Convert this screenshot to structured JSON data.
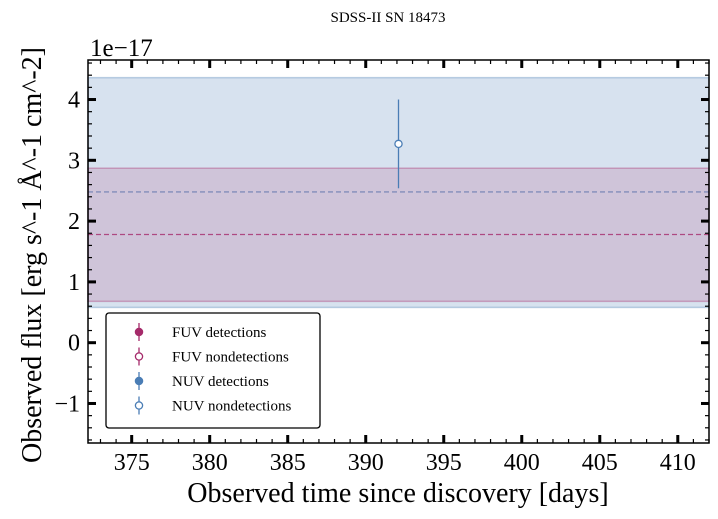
{
  "chart_data": {
    "type": "scatter",
    "title": "SDSS-II SN 18473",
    "xlabel": "Observed time since discovery [days]",
    "ylabel": "Observed flux [erg s^-1 Å^-1 cm^-2]",
    "y_offset_label": "1e−17",
    "xlim": [
      372.2,
      412.0
    ],
    "ylim": [
      -1.65,
      4.65
    ],
    "xticks": [
      375,
      380,
      385,
      390,
      395,
      400,
      405,
      410
    ],
    "yticks": [
      -1,
      0,
      1,
      2,
      3,
      4
    ],
    "ytick_labels": [
      "−1",
      "0",
      "1",
      "2",
      "3",
      "4"
    ],
    "bands": [
      {
        "name": "NUV",
        "color": "#4a7db5",
        "fill_opacity": 0.22,
        "mean": 2.48,
        "low": 0.58,
        "high": 4.36
      },
      {
        "name": "FUV",
        "color": "#a52a6a",
        "fill_opacity": 0.16,
        "mean": 1.78,
        "low": 0.68,
        "high": 2.87
      }
    ],
    "points": [
      {
        "series": "NUV nondetections",
        "x": 392.1,
        "y": 3.27,
        "yerr_low": 0.73,
        "yerr_high": 0.73,
        "color": "#4a7db5",
        "filled": false
      }
    ],
    "legend": {
      "position": "lower-left",
      "entries": [
        {
          "label": "FUV detections",
          "color": "#a52a6a",
          "filled": true
        },
        {
          "label": "FUV nondetections",
          "color": "#a52a6a",
          "filled": false
        },
        {
          "label": "NUV detections",
          "color": "#4a7db5",
          "filled": true
        },
        {
          "label": "NUV nondetections",
          "color": "#4a7db5",
          "filled": false
        }
      ]
    }
  }
}
